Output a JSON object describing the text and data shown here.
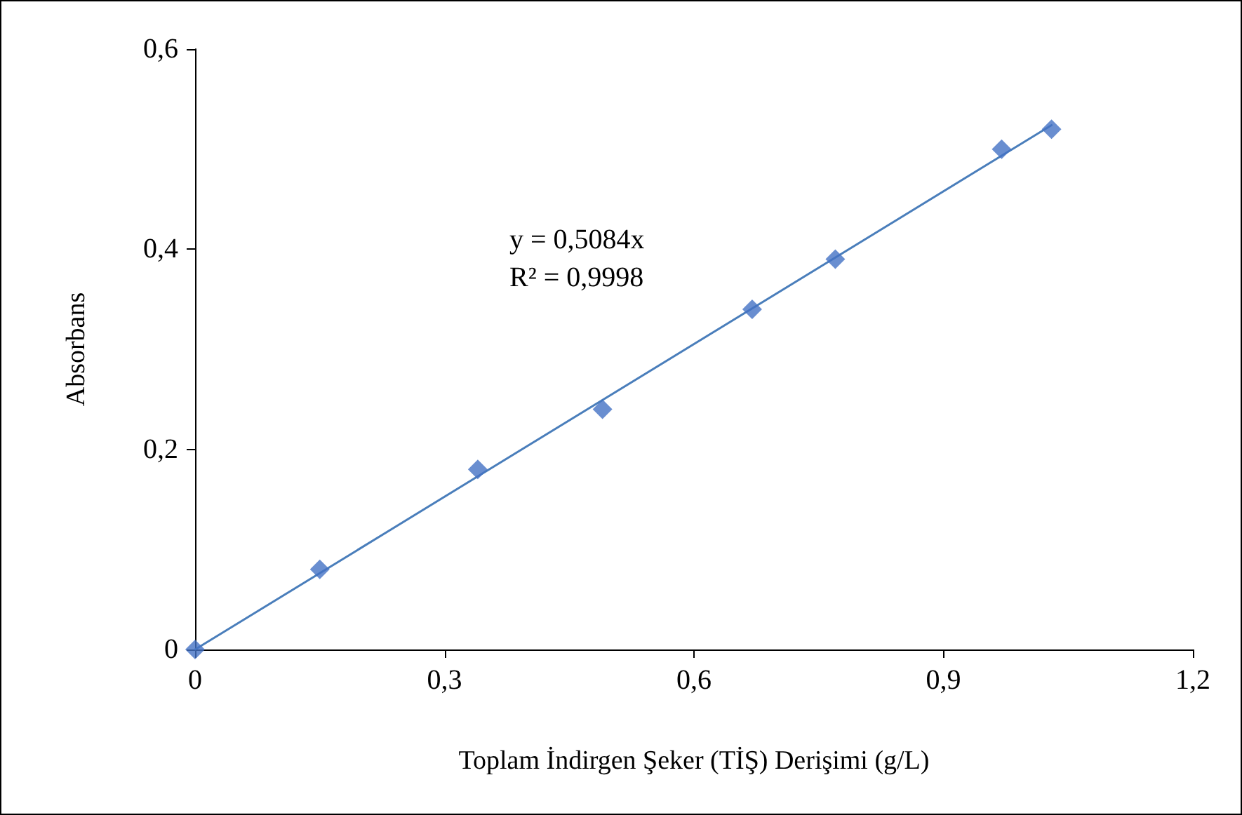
{
  "chart_data": {
    "type": "scatter",
    "xlabel": "Toplam İndirgen Şeker (TİŞ) Derişimi (g/L)",
    "ylabel": "Absorbans",
    "annotations": [
      "y = 0,5084x",
      "R² = 0,9998"
    ],
    "series": [
      {
        "type": "scatter",
        "color": "#4472c4",
        "marker": "diamond",
        "x": [
          0,
          0.15,
          0.34,
          0.49,
          0.67,
          0.77,
          0.97,
          1.03
        ],
        "values": [
          0,
          0.08,
          0.18,
          0.24,
          0.34,
          0.39,
          0.5,
          0.52
        ]
      },
      {
        "type": "line",
        "color": "#4a7ebb",
        "line_style": "solid",
        "marker": "none",
        "x": [
          0,
          1.03
        ],
        "values": [
          0,
          0.524
        ]
      }
    ],
    "xlim": [
      0,
      1.2
    ],
    "xticks": [
      0,
      {
        "value": 0.3,
        "label": "0,3"
      },
      {
        "value": 0.6,
        "label": "0,6"
      },
      {
        "value": 0.9,
        "label": "0,9"
      },
      {
        "value": 1.2,
        "label": "1,2"
      }
    ],
    "ylim": [
      0,
      0.6
    ],
    "yticks": [
      0,
      {
        "value": 0.2,
        "label": "0,2"
      },
      {
        "value": 0.4,
        "label": "0,4"
      },
      {
        "value": 0.6,
        "label": "0,6"
      }
    ],
    "grid": false
  }
}
